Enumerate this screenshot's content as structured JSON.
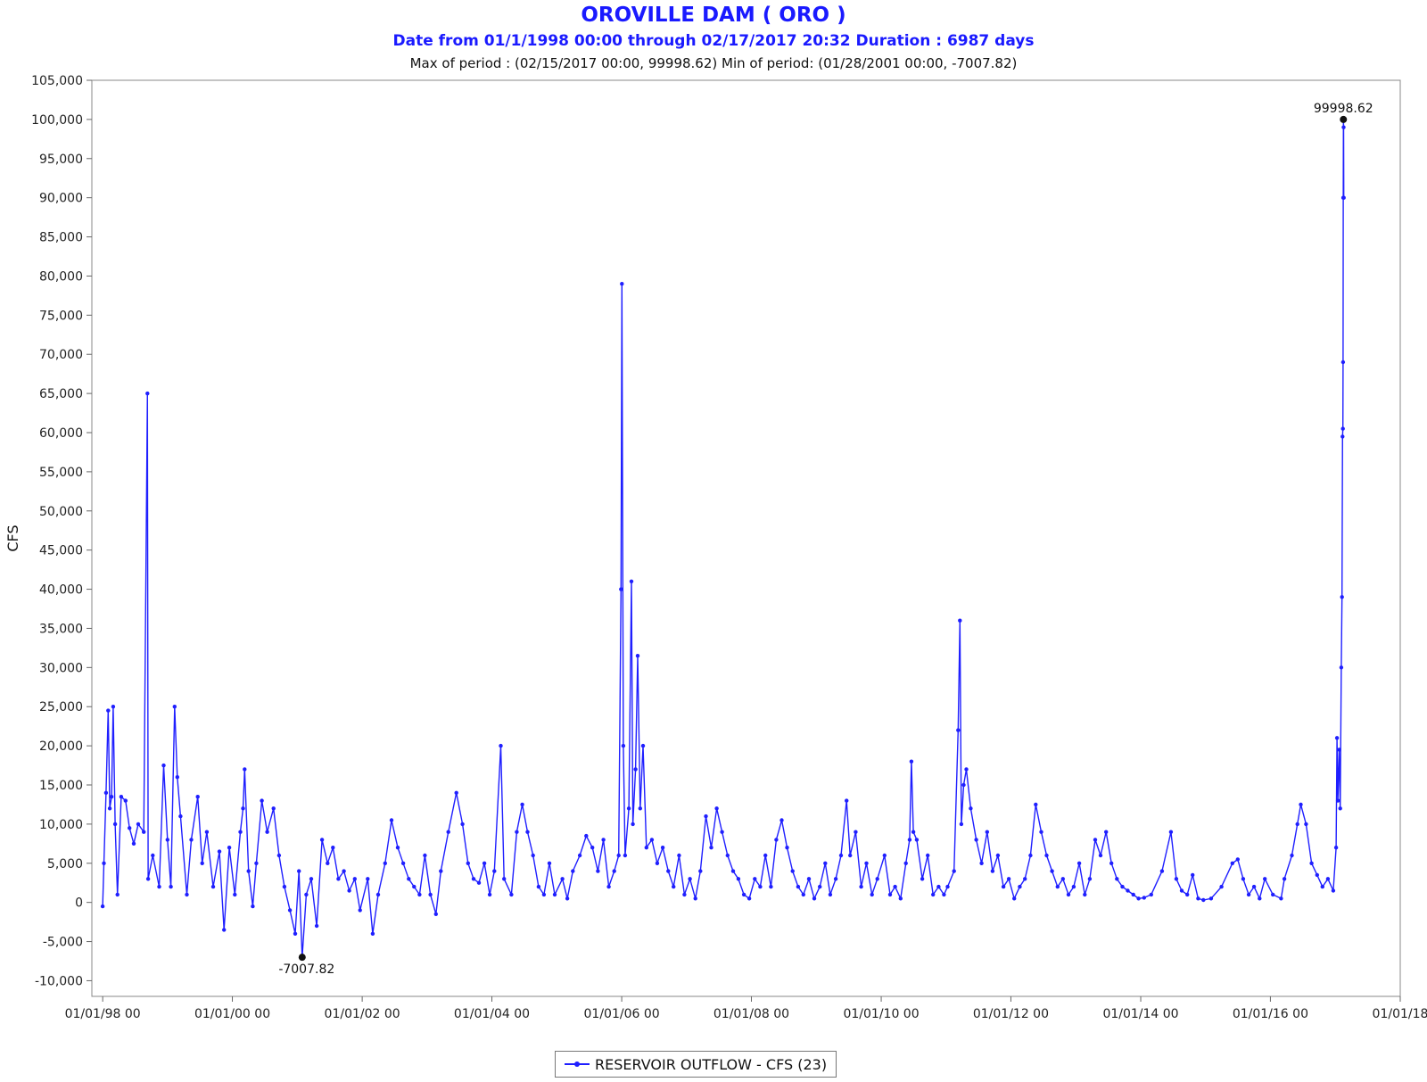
{
  "chart_data": {
    "type": "line",
    "title": "OROVILLE DAM ( ORO )",
    "subtitle": "Date from 01/1/1998 00:00 through 02/17/2017 20:32 Duration : 6987 days",
    "stats_line": "Max of period : (02/15/2017 00:00, 99998.62)  Min of period: (01/28/2001 00:00,  -7007.82)",
    "ylabel": "CFS",
    "ylim": [
      -12000,
      105000
    ],
    "xlim": [
      "1997-11-01",
      "2018-01-01"
    ],
    "grid": true,
    "legend_position": "bottom-center",
    "y_ticks": [
      "-10,000",
      "-5,000",
      "0",
      "5,000",
      "10,000",
      "15,000",
      "20,000",
      "25,000",
      "30,000",
      "35,000",
      "40,000",
      "45,000",
      "50,000",
      "55,000",
      "60,000",
      "65,000",
      "70,000",
      "75,000",
      "80,000",
      "85,000",
      "90,000",
      "95,000",
      "100,000",
      "105,000"
    ],
    "y_tick_values": [
      -10000,
      -5000,
      0,
      5000,
      10000,
      15000,
      20000,
      25000,
      30000,
      35000,
      40000,
      45000,
      50000,
      55000,
      60000,
      65000,
      70000,
      75000,
      80000,
      85000,
      90000,
      95000,
      100000,
      105000
    ],
    "x_ticks": [
      "01/01/98 00",
      "01/01/00 00",
      "01/01/02 00",
      "01/01/04 00",
      "01/01/06 00",
      "01/01/08 00",
      "01/01/10 00",
      "01/01/12 00",
      "01/01/14 00",
      "01/01/16 00",
      "01/01/18"
    ],
    "x_tick_dates": [
      "1998-01-01",
      "2000-01-01",
      "2002-01-01",
      "2004-01-01",
      "2006-01-01",
      "2008-01-01",
      "2010-01-01",
      "2012-01-01",
      "2014-01-01",
      "2016-01-01",
      "2018-01-01"
    ],
    "annotations": [
      {
        "date": "2017-02-15",
        "value": 99998.62,
        "label": "99998.62"
      },
      {
        "date": "2001-01-28",
        "value": -7007.82,
        "label": "-7007.82"
      }
    ],
    "series": [
      {
        "name": "RESERVOIR OUTFLOW - CFS (23)",
        "color": "#1f1fff",
        "points": [
          [
            "1998-01-01",
            -500
          ],
          [
            "1998-01-08",
            5000
          ],
          [
            "1998-01-20",
            14000
          ],
          [
            "1998-02-01",
            24500
          ],
          [
            "1998-02-10",
            12000
          ],
          [
            "1998-02-20",
            13500
          ],
          [
            "1998-03-01",
            25000
          ],
          [
            "1998-03-12",
            10000
          ],
          [
            "1998-03-25",
            1000
          ],
          [
            "1998-04-15",
            13500
          ],
          [
            "1998-05-10",
            13000
          ],
          [
            "1998-06-01",
            9500
          ],
          [
            "1998-06-25",
            7500
          ],
          [
            "1998-07-20",
            10000
          ],
          [
            "1998-08-20",
            9000
          ],
          [
            "1998-09-10",
            65000
          ],
          [
            "1998-09-14",
            3000
          ],
          [
            "1998-10-10",
            6000
          ],
          [
            "1998-11-15",
            2000
          ],
          [
            "1998-12-10",
            17500
          ],
          [
            "1999-01-01",
            8000
          ],
          [
            "1999-01-20",
            2000
          ],
          [
            "1999-02-10",
            25000
          ],
          [
            "1999-02-25",
            16000
          ],
          [
            "1999-03-15",
            11000
          ],
          [
            "1999-04-20",
            1000
          ],
          [
            "1999-05-15",
            8000
          ],
          [
            "1999-06-20",
            13500
          ],
          [
            "1999-07-15",
            5000
          ],
          [
            "1999-08-10",
            9000
          ],
          [
            "1999-09-15",
            2000
          ],
          [
            "1999-10-20",
            6500
          ],
          [
            "1999-11-15",
            -3500
          ],
          [
            "1999-12-15",
            7000
          ],
          [
            "2000-01-15",
            1000
          ],
          [
            "2000-02-15",
            9000
          ],
          [
            "2000-03-01",
            12000
          ],
          [
            "2000-03-10",
            17000
          ],
          [
            "2000-04-01",
            4000
          ],
          [
            "2000-04-25",
            -500
          ],
          [
            "2000-05-15",
            5000
          ],
          [
            "2000-06-15",
            13000
          ],
          [
            "2000-07-15",
            9000
          ],
          [
            "2000-08-20",
            12000
          ],
          [
            "2000-09-20",
            6000
          ],
          [
            "2000-10-20",
            2000
          ],
          [
            "2000-11-20",
            -1000
          ],
          [
            "2000-12-20",
            -4000
          ],
          [
            "2001-01-10",
            4000
          ],
          [
            "2001-01-28",
            -7007.82
          ],
          [
            "2001-02-20",
            1000
          ],
          [
            "2001-03-20",
            3000
          ],
          [
            "2001-04-20",
            -3000
          ],
          [
            "2001-05-20",
            8000
          ],
          [
            "2001-06-20",
            5000
          ],
          [
            "2001-07-20",
            7000
          ],
          [
            "2001-08-20",
            3000
          ],
          [
            "2001-09-20",
            4000
          ],
          [
            "2001-10-20",
            1500
          ],
          [
            "2001-11-20",
            3000
          ],
          [
            "2001-12-20",
            -1000
          ],
          [
            "2002-02-01",
            3000
          ],
          [
            "2002-03-01",
            -4000
          ],
          [
            "2002-04-01",
            1000
          ],
          [
            "2002-05-10",
            5000
          ],
          [
            "2002-06-15",
            10500
          ],
          [
            "2002-07-20",
            7000
          ],
          [
            "2002-08-20",
            5000
          ],
          [
            "2002-09-20",
            3000
          ],
          [
            "2002-10-20",
            2000
          ],
          [
            "2002-11-20",
            1000
          ],
          [
            "2002-12-20",
            6000
          ],
          [
            "2003-01-20",
            1000
          ],
          [
            "2003-02-20",
            -1500
          ],
          [
            "2003-03-20",
            4000
          ],
          [
            "2003-05-01",
            9000
          ],
          [
            "2003-06-15",
            14000
          ],
          [
            "2003-07-20",
            10000
          ],
          [
            "2003-08-20",
            5000
          ],
          [
            "2003-09-20",
            3000
          ],
          [
            "2003-10-20",
            2500
          ],
          [
            "2003-11-20",
            5000
          ],
          [
            "2003-12-20",
            1000
          ],
          [
            "2004-01-15",
            4000
          ],
          [
            "2004-02-20",
            20000
          ],
          [
            "2004-03-10",
            3000
          ],
          [
            "2004-04-20",
            1000
          ],
          [
            "2004-05-20",
            9000
          ],
          [
            "2004-06-20",
            12500
          ],
          [
            "2004-07-20",
            9000
          ],
          [
            "2004-08-20",
            6000
          ],
          [
            "2004-09-20",
            2000
          ],
          [
            "2004-10-20",
            1000
          ],
          [
            "2004-11-20",
            5000
          ],
          [
            "2004-12-20",
            1000
          ],
          [
            "2005-02-01",
            3000
          ],
          [
            "2005-03-01",
            500
          ],
          [
            "2005-04-01",
            4000
          ],
          [
            "2005-05-10",
            6000
          ],
          [
            "2005-06-15",
            8500
          ],
          [
            "2005-07-20",
            7000
          ],
          [
            "2005-08-20",
            4000
          ],
          [
            "2005-09-20",
            8000
          ],
          [
            "2005-10-20",
            2000
          ],
          [
            "2005-11-20",
            4000
          ],
          [
            "2005-12-15",
            6000
          ],
          [
            "2005-12-28",
            40000
          ],
          [
            "2006-01-02",
            79000
          ],
          [
            "2006-01-10",
            20000
          ],
          [
            "2006-01-20",
            6000
          ],
          [
            "2006-02-10",
            12000
          ],
          [
            "2006-02-25",
            41000
          ],
          [
            "2006-03-05",
            10000
          ],
          [
            "2006-03-20",
            17000
          ],
          [
            "2006-04-01",
            31500
          ],
          [
            "2006-04-15",
            12000
          ],
          [
            "2006-05-01",
            20000
          ],
          [
            "2006-05-20",
            7000
          ],
          [
            "2006-06-20",
            8000
          ],
          [
            "2006-07-20",
            5000
          ],
          [
            "2006-08-20",
            7000
          ],
          [
            "2006-09-20",
            4000
          ],
          [
            "2006-10-20",
            2000
          ],
          [
            "2006-11-20",
            6000
          ],
          [
            "2006-12-20",
            1000
          ],
          [
            "2007-01-20",
            3000
          ],
          [
            "2007-02-20",
            500
          ],
          [
            "2007-03-20",
            4000
          ],
          [
            "2007-04-20",
            11000
          ],
          [
            "2007-05-20",
            7000
          ],
          [
            "2007-06-20",
            12000
          ],
          [
            "2007-07-20",
            9000
          ],
          [
            "2007-08-20",
            6000
          ],
          [
            "2007-09-20",
            4000
          ],
          [
            "2007-10-20",
            3000
          ],
          [
            "2007-11-20",
            1000
          ],
          [
            "2007-12-20",
            500
          ],
          [
            "2008-01-20",
            3000
          ],
          [
            "2008-02-20",
            2000
          ],
          [
            "2008-03-20",
            6000
          ],
          [
            "2008-04-20",
            2000
          ],
          [
            "2008-05-20",
            8000
          ],
          [
            "2008-06-20",
            10500
          ],
          [
            "2008-07-20",
            7000
          ],
          [
            "2008-08-20",
            4000
          ],
          [
            "2008-09-20",
            2000
          ],
          [
            "2008-10-20",
            1000
          ],
          [
            "2008-11-20",
            3000
          ],
          [
            "2008-12-20",
            500
          ],
          [
            "2009-01-20",
            2000
          ],
          [
            "2009-02-20",
            5000
          ],
          [
            "2009-03-20",
            1000
          ],
          [
            "2009-04-20",
            3000
          ],
          [
            "2009-05-20",
            6000
          ],
          [
            "2009-06-20",
            13000
          ],
          [
            "2009-07-10",
            6000
          ],
          [
            "2009-08-10",
            9000
          ],
          [
            "2009-09-10",
            2000
          ],
          [
            "2009-10-10",
            5000
          ],
          [
            "2009-11-10",
            1000
          ],
          [
            "2009-12-10",
            3000
          ],
          [
            "2010-01-20",
            6000
          ],
          [
            "2010-02-20",
            1000
          ],
          [
            "2010-03-20",
            2000
          ],
          [
            "2010-04-20",
            500
          ],
          [
            "2010-05-20",
            5000
          ],
          [
            "2010-06-10",
            8000
          ],
          [
            "2010-06-20",
            18000
          ],
          [
            "2010-07-01",
            9000
          ],
          [
            "2010-07-20",
            8000
          ],
          [
            "2010-08-20",
            3000
          ],
          [
            "2010-09-20",
            6000
          ],
          [
            "2010-10-20",
            1000
          ],
          [
            "2010-11-20",
            2000
          ],
          [
            "2010-12-20",
            1000
          ],
          [
            "2011-01-10",
            2000
          ],
          [
            "2011-02-15",
            4000
          ],
          [
            "2011-03-10",
            22000
          ],
          [
            "2011-03-20",
            36000
          ],
          [
            "2011-03-28",
            10000
          ],
          [
            "2011-04-10",
            15000
          ],
          [
            "2011-04-25",
            17000
          ],
          [
            "2011-05-20",
            12000
          ],
          [
            "2011-06-20",
            8000
          ],
          [
            "2011-07-20",
            5000
          ],
          [
            "2011-08-20",
            9000
          ],
          [
            "2011-09-20",
            4000
          ],
          [
            "2011-10-20",
            6000
          ],
          [
            "2011-11-20",
            2000
          ],
          [
            "2011-12-20",
            3000
          ],
          [
            "2012-01-20",
            500
          ],
          [
            "2012-02-20",
            2000
          ],
          [
            "2012-03-20",
            3000
          ],
          [
            "2012-04-20",
            6000
          ],
          [
            "2012-05-20",
            12500
          ],
          [
            "2012-06-20",
            9000
          ],
          [
            "2012-07-20",
            6000
          ],
          [
            "2012-08-20",
            4000
          ],
          [
            "2012-09-20",
            2000
          ],
          [
            "2012-10-20",
            3000
          ],
          [
            "2012-11-20",
            1000
          ],
          [
            "2012-12-20",
            2000
          ],
          [
            "2013-01-20",
            5000
          ],
          [
            "2013-02-20",
            1000
          ],
          [
            "2013-03-20",
            3000
          ],
          [
            "2013-04-20",
            8000
          ],
          [
            "2013-05-20",
            6000
          ],
          [
            "2013-06-20",
            9000
          ],
          [
            "2013-07-20",
            5000
          ],
          [
            "2013-08-20",
            3000
          ],
          [
            "2013-09-20",
            2000
          ],
          [
            "2013-10-20",
            1500
          ],
          [
            "2013-11-20",
            1000
          ],
          [
            "2013-12-20",
            500
          ],
          [
            "2014-01-20",
            600
          ],
          [
            "2014-03-01",
            1000
          ],
          [
            "2014-05-01",
            4000
          ],
          [
            "2014-06-20",
            9000
          ],
          [
            "2014-07-20",
            3000
          ],
          [
            "2014-08-20",
            1500
          ],
          [
            "2014-09-20",
            1000
          ],
          [
            "2014-10-20",
            3500
          ],
          [
            "2014-11-20",
            500
          ],
          [
            "2014-12-20",
            300
          ],
          [
            "2015-02-01",
            500
          ],
          [
            "2015-04-01",
            2000
          ],
          [
            "2015-06-01",
            5000
          ],
          [
            "2015-07-01",
            5500
          ],
          [
            "2015-08-01",
            3000
          ],
          [
            "2015-09-01",
            1000
          ],
          [
            "2015-10-01",
            2000
          ],
          [
            "2015-11-01",
            500
          ],
          [
            "2015-12-01",
            3000
          ],
          [
            "2016-01-15",
            1000
          ],
          [
            "2016-03-01",
            500
          ],
          [
            "2016-03-20",
            3000
          ],
          [
            "2016-05-01",
            6000
          ],
          [
            "2016-06-01",
            10000
          ],
          [
            "2016-06-20",
            12500
          ],
          [
            "2016-07-20",
            10000
          ],
          [
            "2016-08-20",
            5000
          ],
          [
            "2016-09-20",
            3500
          ],
          [
            "2016-10-20",
            2000
          ],
          [
            "2016-11-20",
            3000
          ],
          [
            "2016-12-20",
            1500
          ],
          [
            "2017-01-05",
            7000
          ],
          [
            "2017-01-10",
            21000
          ],
          [
            "2017-01-15",
            13000
          ],
          [
            "2017-01-22",
            19500
          ],
          [
            "2017-01-28",
            12000
          ],
          [
            "2017-02-03",
            30000
          ],
          [
            "2017-02-07",
            39000
          ],
          [
            "2017-02-10",
            59500
          ],
          [
            "2017-02-12",
            60500
          ],
          [
            "2017-02-13",
            69000
          ],
          [
            "2017-02-14",
            90000
          ],
          [
            "2017-02-15",
            99998.62
          ],
          [
            "2017-02-16",
            99000
          ],
          [
            "2017-02-17",
            90000
          ]
        ]
      }
    ]
  },
  "legend": {
    "label": "RESERVOIR OUTFLOW - CFS (23)"
  }
}
